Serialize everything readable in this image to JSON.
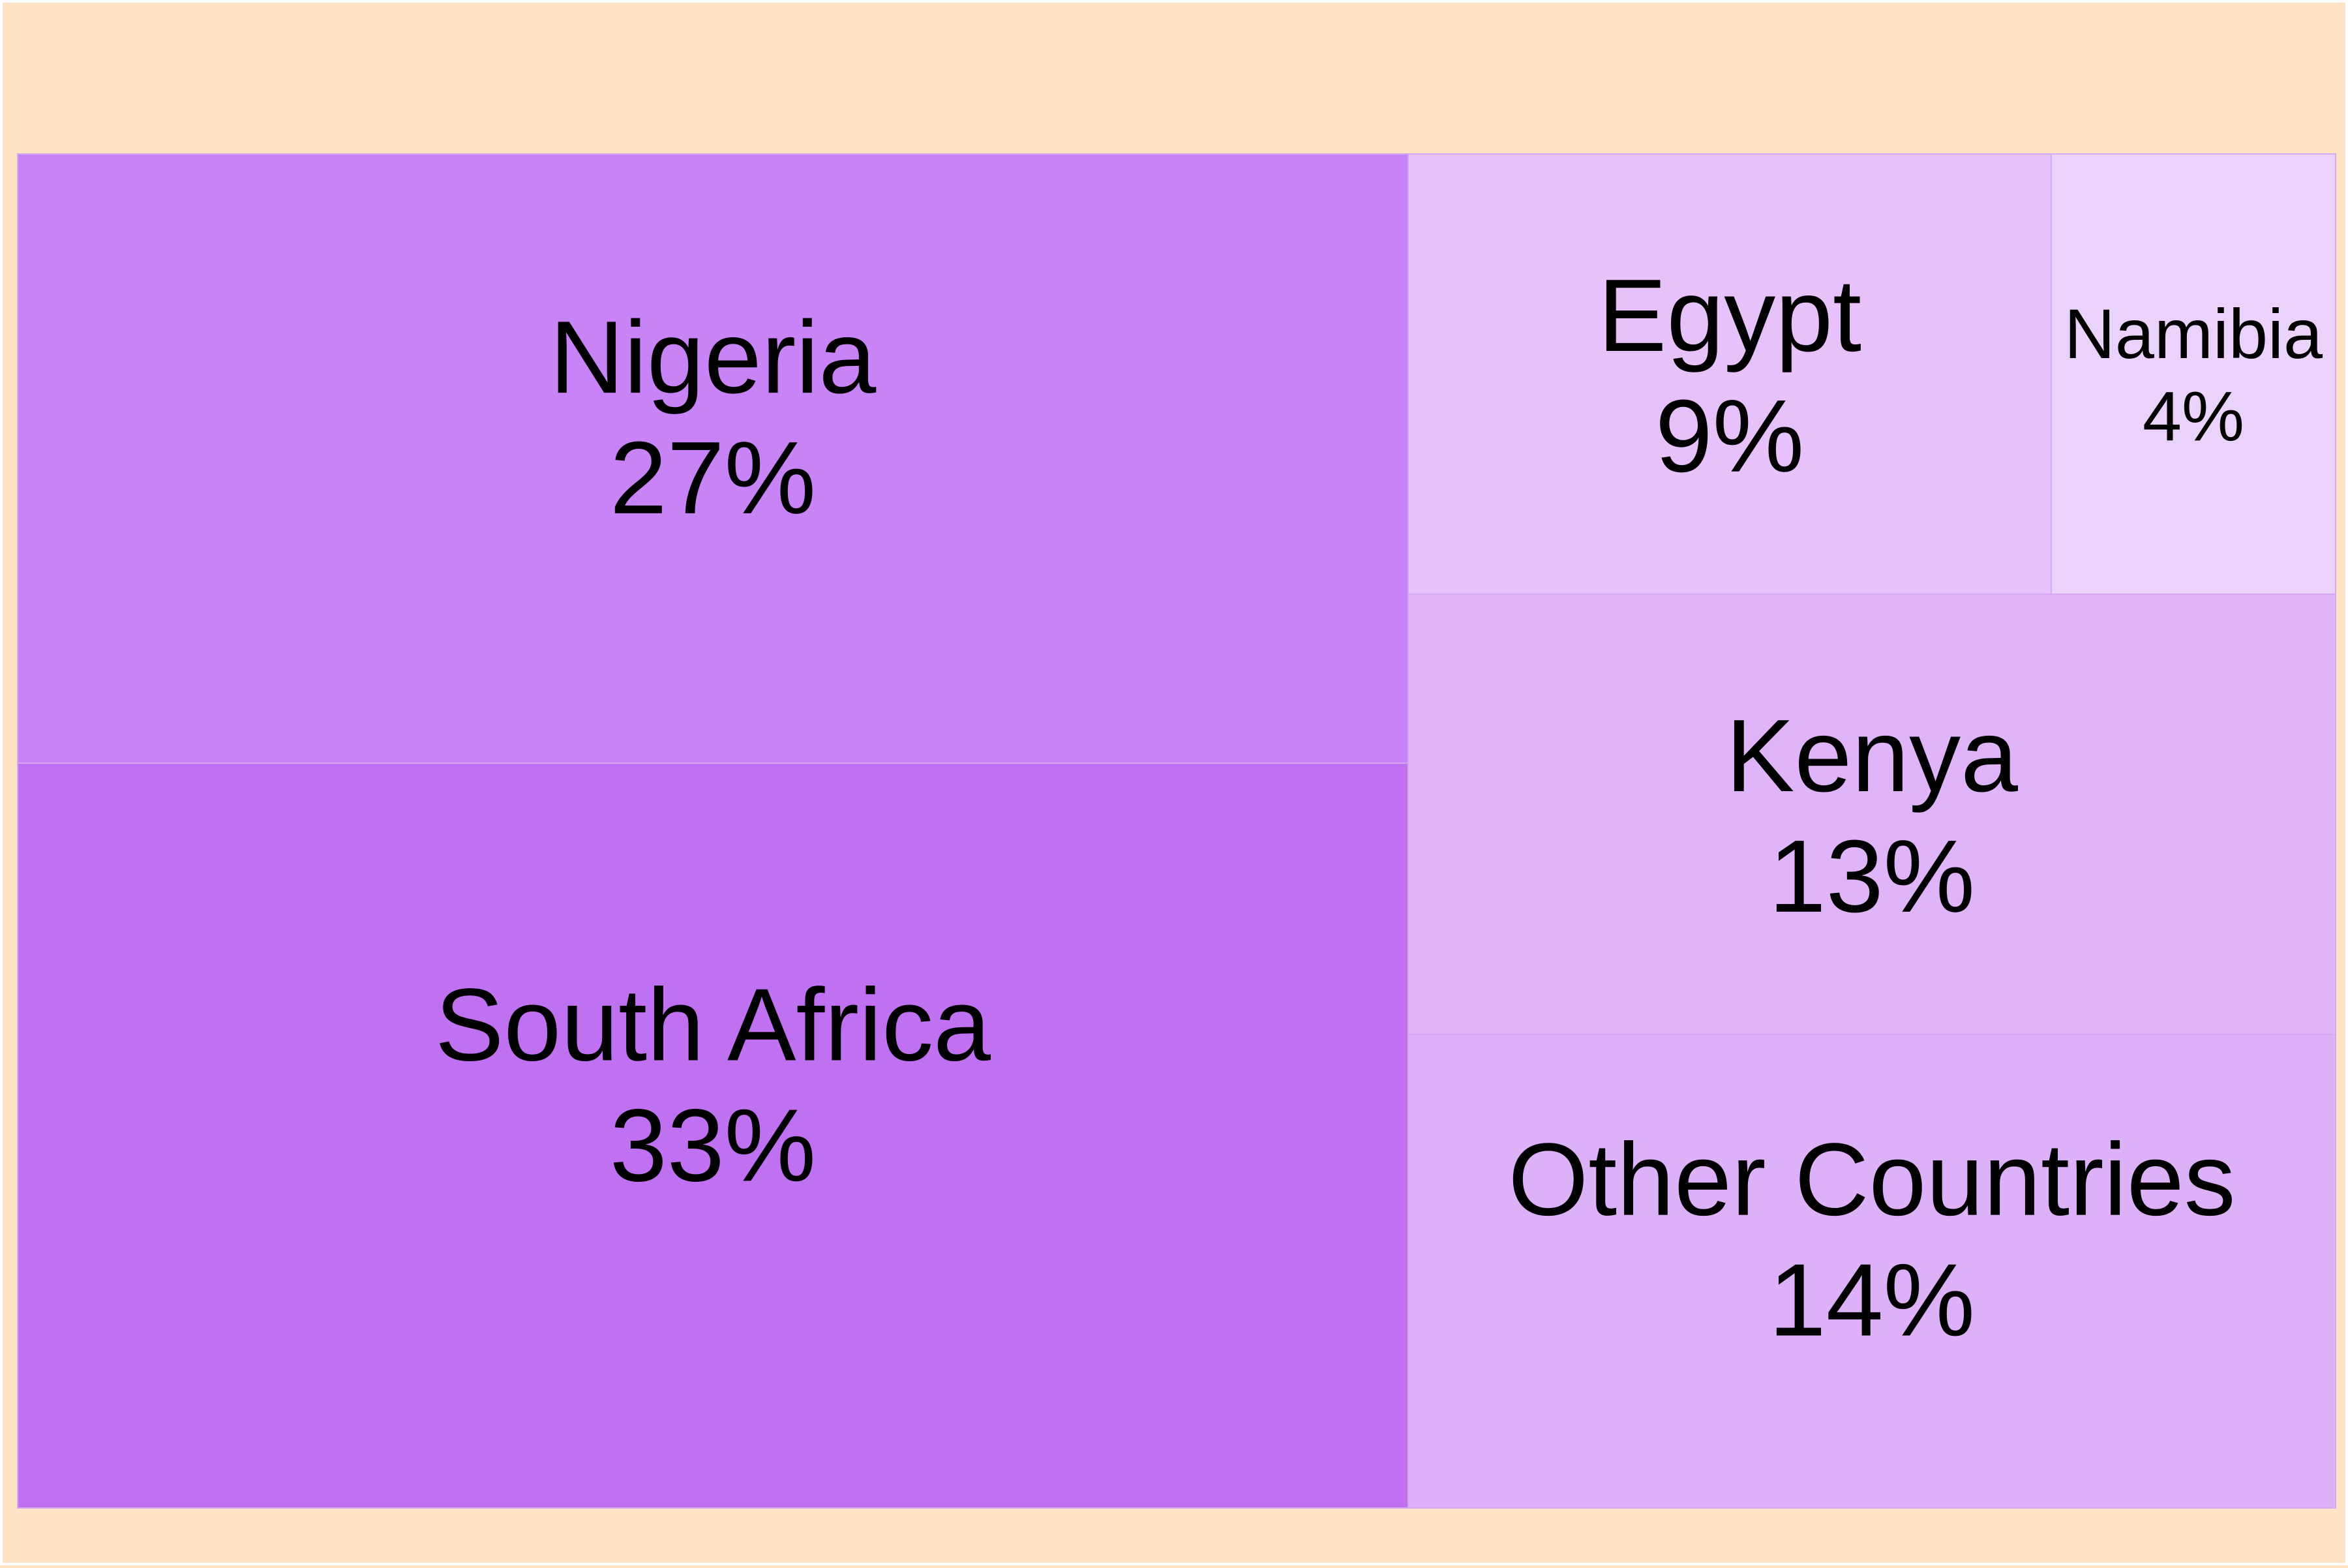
{
  "chart_data": {
    "type": "treemap",
    "title": "",
    "items": [
      {
        "label": "Nigeria",
        "value_label": "27%",
        "value": 27,
        "color": "#c883f6"
      },
      {
        "label": "South Africa",
        "value_label": "33%",
        "value": 33,
        "color": "#bf71f2"
      },
      {
        "label": "Egypt",
        "value_label": "9%",
        "value": 9,
        "color": "#e6c1fa"
      },
      {
        "label": "Namibia",
        "value_label": "4%",
        "value": 4,
        "color": "#ebd2fb"
      },
      {
        "label": "Kenya",
        "value_label": "13%",
        "value": 13,
        "color": "#dfb4f8"
      },
      {
        "label": "Other Countries",
        "value_label": "14%",
        "value": 14,
        "color": "#ddb1f8"
      }
    ],
    "background_color": "#fee3c5"
  }
}
